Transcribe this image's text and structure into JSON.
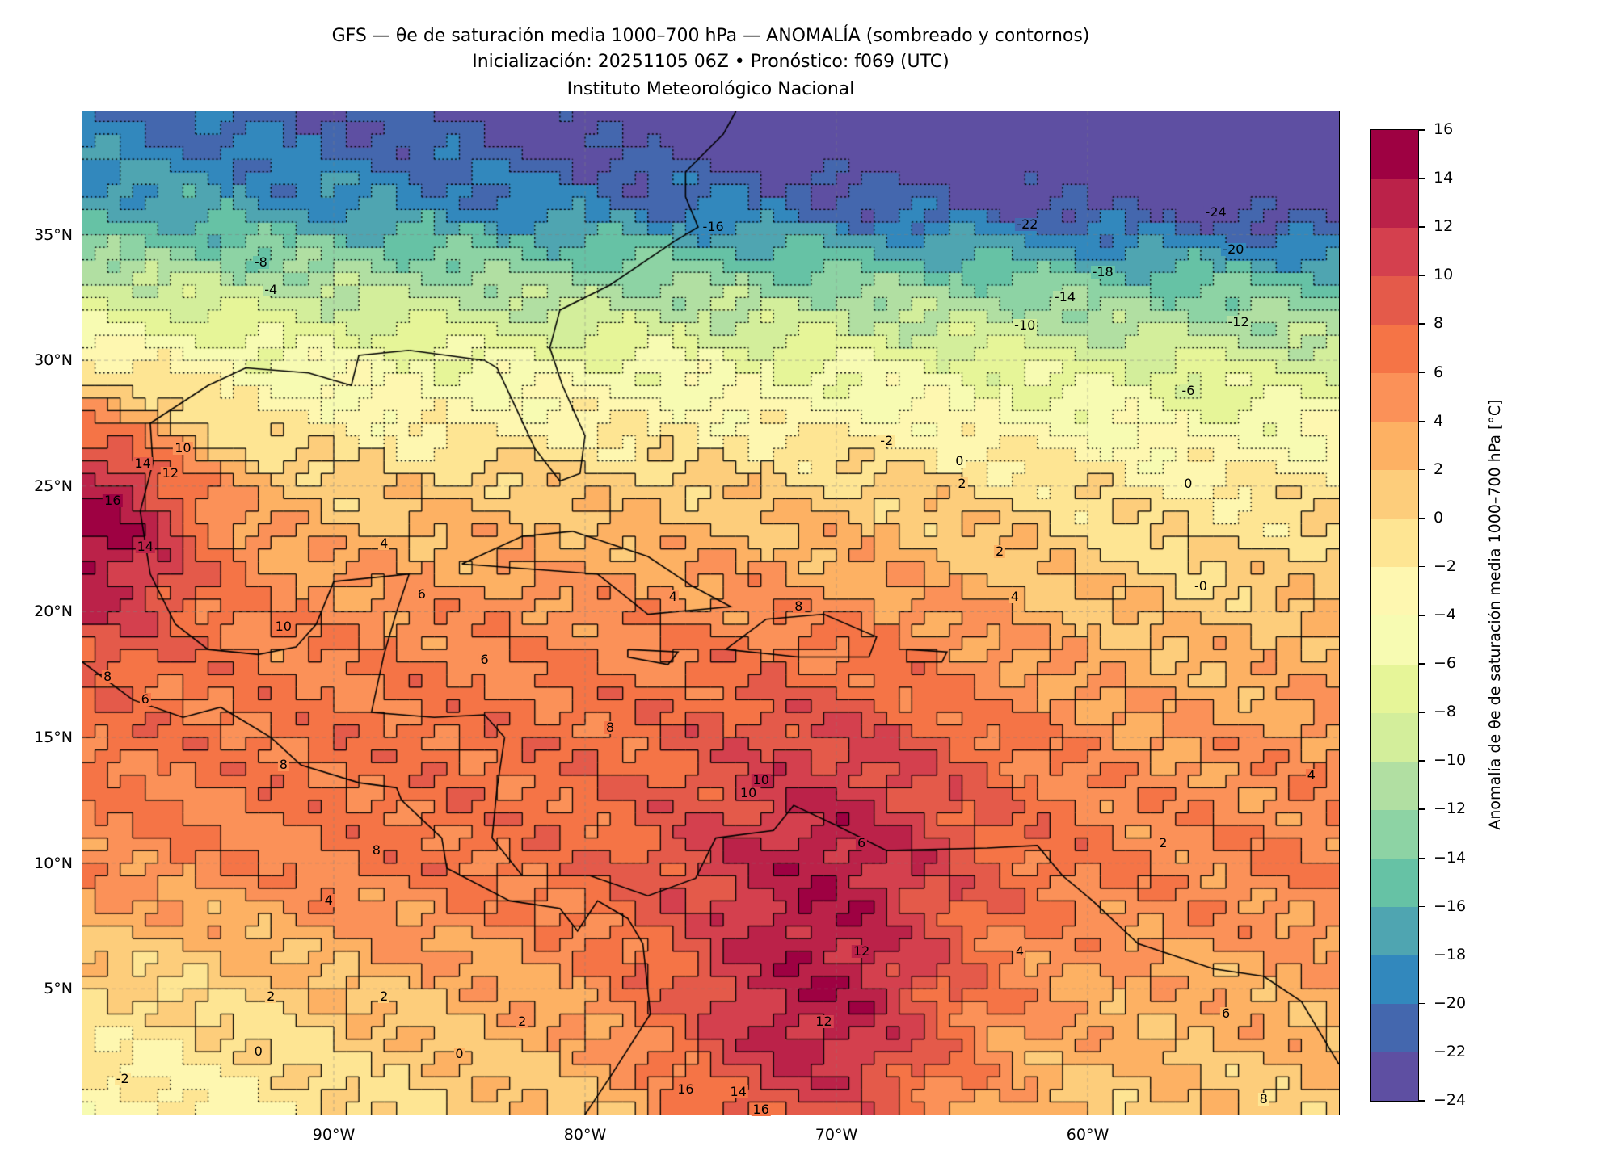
{
  "title": {
    "line1": "GFS — θe de saturación media 1000–700 hPa — ANOMALÍA (sombreado y contornos)",
    "line2": "Inicialización: 20251105 06Z   •   Pronóstico: f069 (UTC)",
    "line3": "Instituto Meteorológico Nacional"
  },
  "map": {
    "lon_range": [
      -100,
      -50
    ],
    "lat_range": [
      0,
      39.9
    ],
    "lat_ticks": [
      {
        "v": 35,
        "label": "35°N"
      },
      {
        "v": 30,
        "label": "30°N"
      },
      {
        "v": 25,
        "label": "25°N"
      },
      {
        "v": 20,
        "label": "20°N"
      },
      {
        "v": 15,
        "label": "15°N"
      },
      {
        "v": 10,
        "label": "10°N"
      },
      {
        "v": 5,
        "label": "5°N"
      }
    ],
    "lon_ticks": [
      {
        "v": -90,
        "label": "90°W"
      },
      {
        "v": -80,
        "label": "80°W"
      },
      {
        "v": -70,
        "label": "70°W"
      },
      {
        "v": -60,
        "label": "60°W"
      }
    ],
    "contour_labels": [
      {
        "t": "-24",
        "lat": 35.9,
        "lon": -54.9
      },
      {
        "t": "-22",
        "lat": 35.4,
        "lon": -62.4
      },
      {
        "t": "-20",
        "lat": 34.4,
        "lon": -54.2
      },
      {
        "t": "-18",
        "lat": 33.5,
        "lon": -59.4
      },
      {
        "t": "-16",
        "lat": 35.3,
        "lon": -74.9
      },
      {
        "t": "-14",
        "lat": 32.5,
        "lon": -60.9
      },
      {
        "t": "-12",
        "lat": 31.5,
        "lon": -54.0
      },
      {
        "t": "-10",
        "lat": 31.4,
        "lon": -62.5
      },
      {
        "t": "-8",
        "lat": 33.9,
        "lon": -92.9
      },
      {
        "t": "-6",
        "lat": 28.8,
        "lon": -56.0
      },
      {
        "t": "-4",
        "lat": 32.8,
        "lon": -92.5
      },
      {
        "t": "-2",
        "lat": 26.8,
        "lon": -68.0
      },
      {
        "t": "0",
        "lat": 26.0,
        "lon": -65.1
      },
      {
        "t": "2",
        "lat": 25.1,
        "lon": -65.0
      },
      {
        "t": "0",
        "lat": 25.1,
        "lon": -56.0
      },
      {
        "t": "2",
        "lat": 22.4,
        "lon": -63.5
      },
      {
        "t": "4",
        "lat": 22.7,
        "lon": -88.0
      },
      {
        "t": "6",
        "lat": 20.7,
        "lon": -86.5
      },
      {
        "t": "4",
        "lat": 20.6,
        "lon": -76.5
      },
      {
        "t": "8",
        "lat": 20.2,
        "lon": -71.5
      },
      {
        "t": "4",
        "lat": 20.6,
        "lon": -62.9
      },
      {
        "t": "-0",
        "lat": 21.0,
        "lon": -55.5
      },
      {
        "t": "10",
        "lat": 19.4,
        "lon": -92.0
      },
      {
        "t": "14",
        "lat": 22.6,
        "lon": -97.5
      },
      {
        "t": "12",
        "lat": 25.5,
        "lon": -96.5
      },
      {
        "t": "10",
        "lat": 26.5,
        "lon": -96.0
      },
      {
        "t": "14",
        "lat": 25.9,
        "lon": -97.6
      },
      {
        "t": "16",
        "lat": 24.4,
        "lon": -98.8
      },
      {
        "t": "6",
        "lat": 18.1,
        "lon": -84.0
      },
      {
        "t": "8",
        "lat": 15.4,
        "lon": -79.0
      },
      {
        "t": "8",
        "lat": 13.9,
        "lon": -92.0
      },
      {
        "t": "10",
        "lat": 13.3,
        "lon": -73.0
      },
      {
        "t": "10",
        "lat": 12.8,
        "lon": -73.5
      },
      {
        "t": "8",
        "lat": 10.5,
        "lon": -88.3
      },
      {
        "t": "4",
        "lat": 8.5,
        "lon": -90.2
      },
      {
        "t": "2",
        "lat": 4.7,
        "lon": -92.5
      },
      {
        "t": "2",
        "lat": 4.7,
        "lon": -88.0
      },
      {
        "t": "2",
        "lat": 3.7,
        "lon": -82.5
      },
      {
        "t": "0",
        "lat": 2.5,
        "lon": -93.0
      },
      {
        "t": "0",
        "lat": 2.4,
        "lon": -85.0
      },
      {
        "t": "-2",
        "lat": 1.4,
        "lon": -98.4
      },
      {
        "t": "12",
        "lat": 6.5,
        "lon": -69.0
      },
      {
        "t": "12",
        "lat": 3.7,
        "lon": -70.5
      },
      {
        "t": "14",
        "lat": 0.9,
        "lon": -73.9
      },
      {
        "t": "16",
        "lat": 0.2,
        "lon": -73.0
      },
      {
        "t": "16",
        "lat": 1.0,
        "lon": -76.0
      },
      {
        "t": "6",
        "lat": 10.8,
        "lon": -69.0
      },
      {
        "t": "4",
        "lat": 13.5,
        "lon": -51.1
      },
      {
        "t": "2",
        "lat": 10.8,
        "lon": -57.0
      },
      {
        "t": "6",
        "lat": 4.0,
        "lon": -54.5
      },
      {
        "t": "8",
        "lat": 0.6,
        "lon": -53.0
      },
      {
        "t": "4",
        "lat": 6.5,
        "lon": -62.7
      },
      {
        "t": "8",
        "lat": 17.4,
        "lon": -99.0
      },
      {
        "t": "6",
        "lat": 16.5,
        "lon": -97.5
      }
    ]
  },
  "colorbar": {
    "label": "Anomalía de θe de saturación media 1000–700 hPa [°C]",
    "levels": [
      -24,
      -22,
      -20,
      -18,
      -16,
      -14,
      -12,
      -10,
      -8,
      -6,
      -4,
      -2,
      0,
      2,
      4,
      6,
      8,
      10,
      12,
      14,
      16
    ],
    "tick_labels": [
      "−24",
      "−22",
      "−20",
      "−18",
      "−16",
      "−14",
      "−12",
      "−10",
      "−8",
      "−6",
      "−4",
      "−2",
      "0",
      "2",
      "4",
      "6",
      "8",
      "10",
      "12",
      "14",
      "16"
    ],
    "colors": [
      "#5e4fa2",
      "#4467ae",
      "#3288bd",
      "#4fa5b1",
      "#66c2a5",
      "#8dd3a4",
      "#b1dfa2",
      "#d3ee9b",
      "#e6f598",
      "#f7fbb2",
      "#fef7b0",
      "#fee593",
      "#fdcd7b",
      "#fdb163",
      "#fb9158",
      "#f57446",
      "#e45a4a",
      "#d4404e",
      "#bb2249",
      "#9e0142"
    ]
  }
}
